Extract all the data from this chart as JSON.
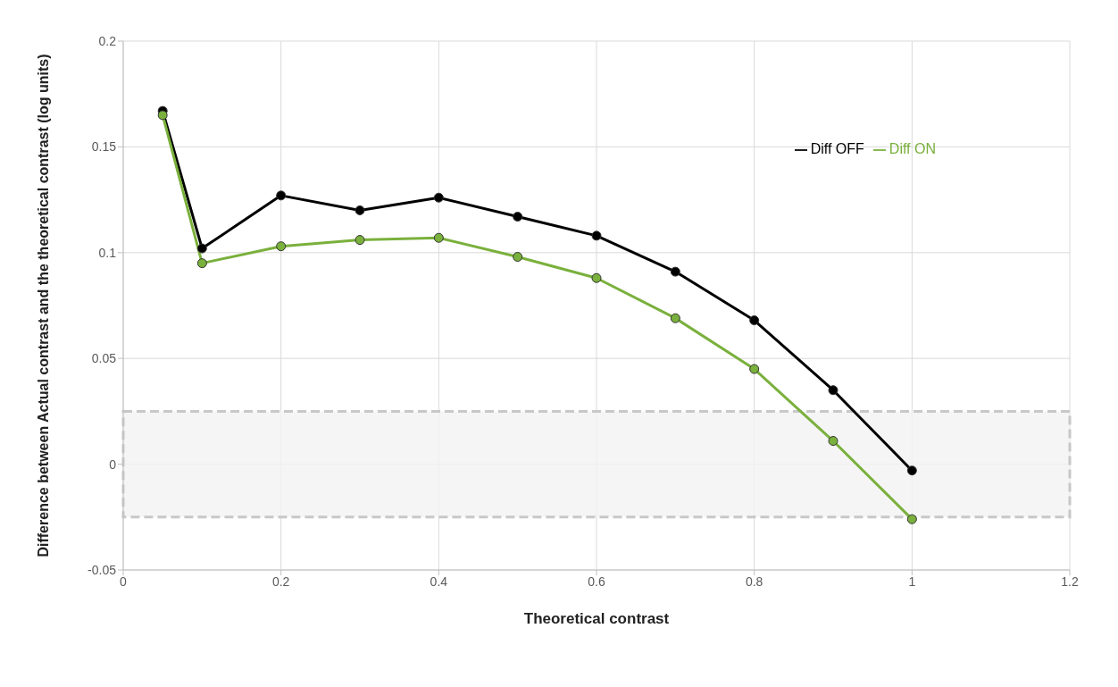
{
  "chart_data": {
    "type": "line",
    "xlabel": "Theoretical contrast",
    "ylabel": "Difference between Actual contrast and the theoretical contrast (log units)",
    "x": [
      0.05,
      0.1,
      0.2,
      0.3,
      0.4,
      0.5,
      0.6,
      0.7,
      0.8,
      0.9,
      1.0
    ],
    "series": [
      {
        "name": "Diff OFF",
        "color": "#000000",
        "values": [
          0.167,
          0.102,
          0.127,
          0.12,
          0.126,
          0.117,
          0.108,
          0.091,
          0.068,
          0.035,
          -0.003
        ]
      },
      {
        "name": "Diff ON",
        "color": "#7ab03c",
        "values": [
          0.165,
          0.095,
          0.103,
          0.106,
          0.107,
          0.098,
          0.088,
          0.069,
          0.045,
          0.011,
          -0.026
        ]
      }
    ],
    "xlim": [
      0,
      1.2
    ],
    "xticks": [
      0,
      0.2,
      0.4,
      0.6,
      0.8,
      1,
      1.2
    ],
    "ylim": [
      -0.05,
      0.2
    ],
    "yticks": [
      -0.05,
      0,
      0.05,
      0.1,
      0.15,
      0.2
    ],
    "bands": [
      {
        "axis": "y",
        "from": -0.025,
        "to": 0.025,
        "color": "#f2f2f2"
      }
    ],
    "grid": true,
    "legend": "top right",
    "marker": "circle",
    "line_style": "solid"
  }
}
